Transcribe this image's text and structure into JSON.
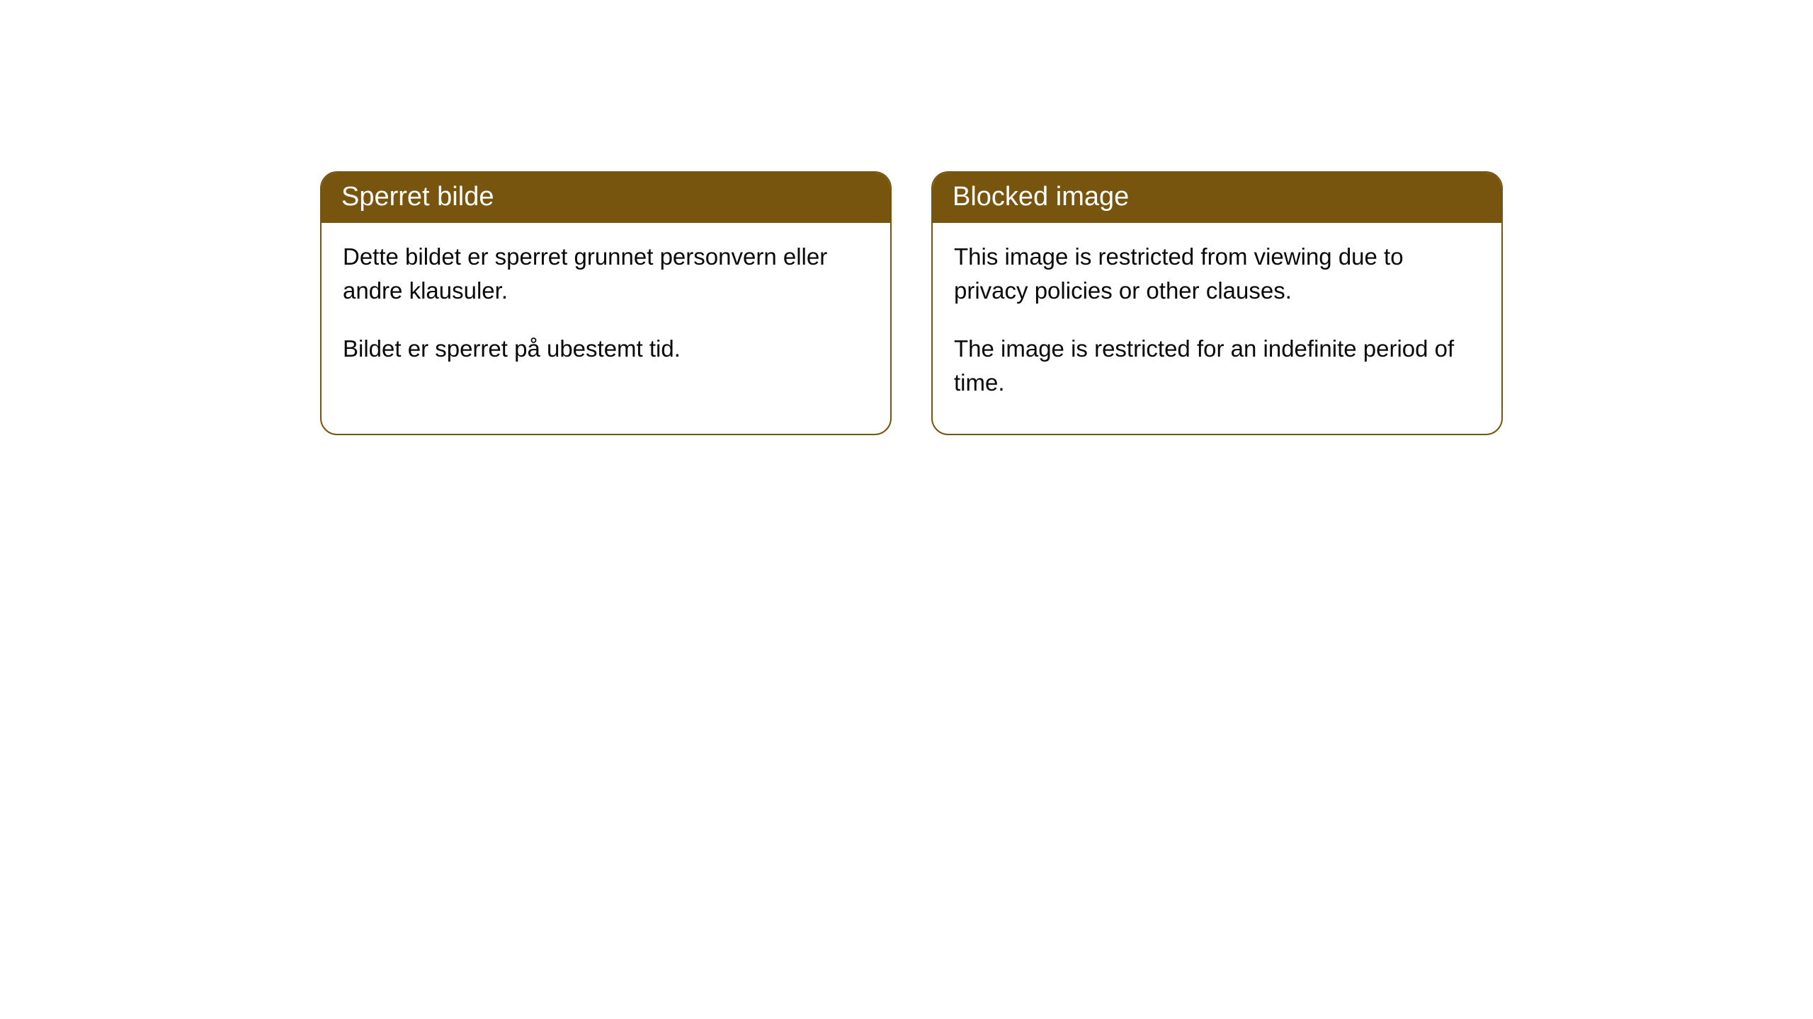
{
  "cards": [
    {
      "title": "Sperret bilde",
      "para1": "Dette bildet er sperret grunnet personvern eller andre klausuler.",
      "para2": "Bildet er sperret på ubestemt tid."
    },
    {
      "title": "Blocked image",
      "para1": "This image is restricted from viewing due to privacy policies or other clauses.",
      "para2": "The image is restricted for an indefinite period of time."
    }
  ],
  "style": {
    "header_bg": "#78550f",
    "header_text": "#ffffff",
    "border_color": "#78550f",
    "body_bg": "#ffffff",
    "body_text": "#0a0a0a",
    "border_radius": 24,
    "header_fontsize": 38,
    "body_fontsize": 33
  }
}
